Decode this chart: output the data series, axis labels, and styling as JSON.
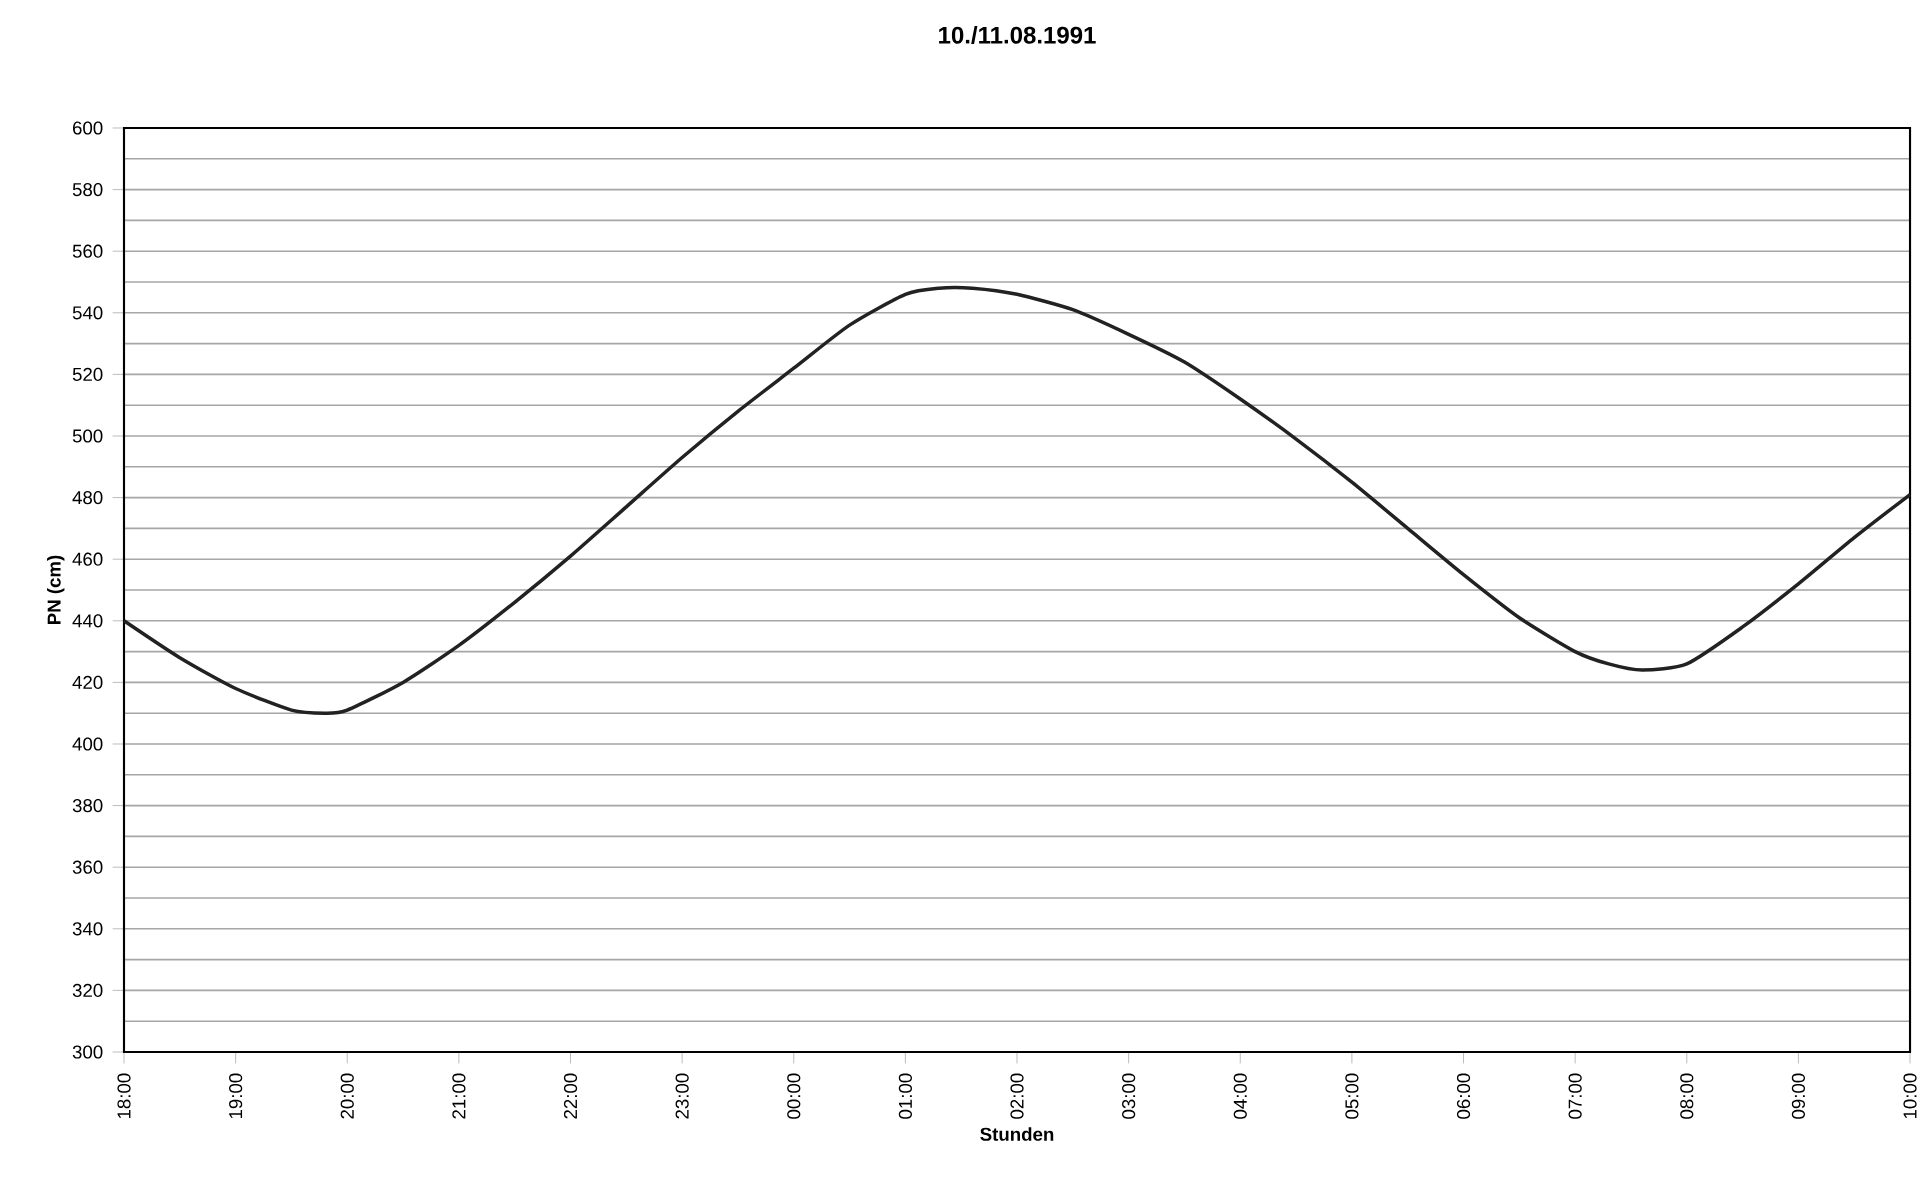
{
  "chart_data": {
    "type": "line",
    "title": "10./11.08.1991",
    "xlabel": "Stunden",
    "ylabel": "PN (cm)",
    "xlim": [
      "1991-08-10T18:00",
      "1991-08-11T10:00"
    ],
    "ylim": [
      300,
      600
    ],
    "xticks": [
      {
        "value": "1991-08-10T18:00",
        "label": "18:00"
      },
      {
        "value": "1991-08-10T19:00",
        "label": "19:00"
      },
      {
        "value": "1991-08-10T20:00",
        "label": "20:00"
      },
      {
        "value": "1991-08-10T21:00",
        "label": "21:00"
      },
      {
        "value": "1991-08-10T22:00",
        "label": "22:00"
      },
      {
        "value": "1991-08-10T23:00",
        "label": "23:00"
      },
      {
        "value": "1991-08-11T00:00",
        "label": "00:00"
      },
      {
        "value": "1991-08-11T01:00",
        "label": "01:00"
      },
      {
        "value": "1991-08-11T02:00",
        "label": "02:00"
      },
      {
        "value": "1991-08-11T03:00",
        "label": "03:00"
      },
      {
        "value": "1991-08-11T04:00",
        "label": "04:00"
      },
      {
        "value": "1991-08-11T05:00",
        "label": "05:00"
      },
      {
        "value": "1991-08-11T06:00",
        "label": "06:00"
      },
      {
        "value": "1991-08-11T07:00",
        "label": "07:00"
      },
      {
        "value": "1991-08-11T08:00",
        "label": "08:00"
      },
      {
        "value": "1991-08-11T09:00",
        "label": "09:00"
      },
      {
        "value": "1991-08-11T10:00",
        "label": "10:00"
      }
    ],
    "yticks": [
      300,
      320,
      340,
      360,
      380,
      400,
      420,
      440,
      460,
      480,
      500,
      520,
      540,
      560,
      580,
      600
    ],
    "grid": "y",
    "marker": "none",
    "line_style": "solid",
    "series": [
      {
        "color": "#222222",
        "x": [
          "1991-08-10T18:00",
          "1991-08-10T18:30",
          "1991-08-10T19:00",
          "1991-08-10T19:30",
          "1991-08-10T19:48",
          "1991-08-10T20:00",
          "1991-08-10T20:30",
          "1991-08-10T21:00",
          "1991-08-10T21:30",
          "1991-08-10T22:00",
          "1991-08-10T22:30",
          "1991-08-10T23:00",
          "1991-08-10T23:30",
          "1991-08-11T00:00",
          "1991-08-11T00:30",
          "1991-08-11T01:00",
          "1991-08-11T01:18",
          "1991-08-11T01:36",
          "1991-08-11T02:00",
          "1991-08-11T02:30",
          "1991-08-11T03:00",
          "1991-08-11T03:30",
          "1991-08-11T04:00",
          "1991-08-11T04:30",
          "1991-08-11T05:00",
          "1991-08-11T05:30",
          "1991-08-11T06:00",
          "1991-08-11T06:30",
          "1991-08-11T07:00",
          "1991-08-11T07:18",
          "1991-08-11T07:36",
          "1991-08-11T08:00",
          "1991-08-11T08:30",
          "1991-08-11T09:00",
          "1991-08-11T09:30",
          "1991-08-11T10:00"
        ],
        "values": [
          440,
          428,
          418,
          411,
          410,
          411,
          420,
          432,
          446,
          461,
          477,
          493,
          508,
          522,
          536,
          546,
          548,
          548,
          546,
          541,
          533,
          524,
          512,
          499,
          485,
          470,
          455,
          441,
          430,
          426,
          424,
          426,
          438,
          452,
          467,
          481
        ]
      }
    ]
  }
}
